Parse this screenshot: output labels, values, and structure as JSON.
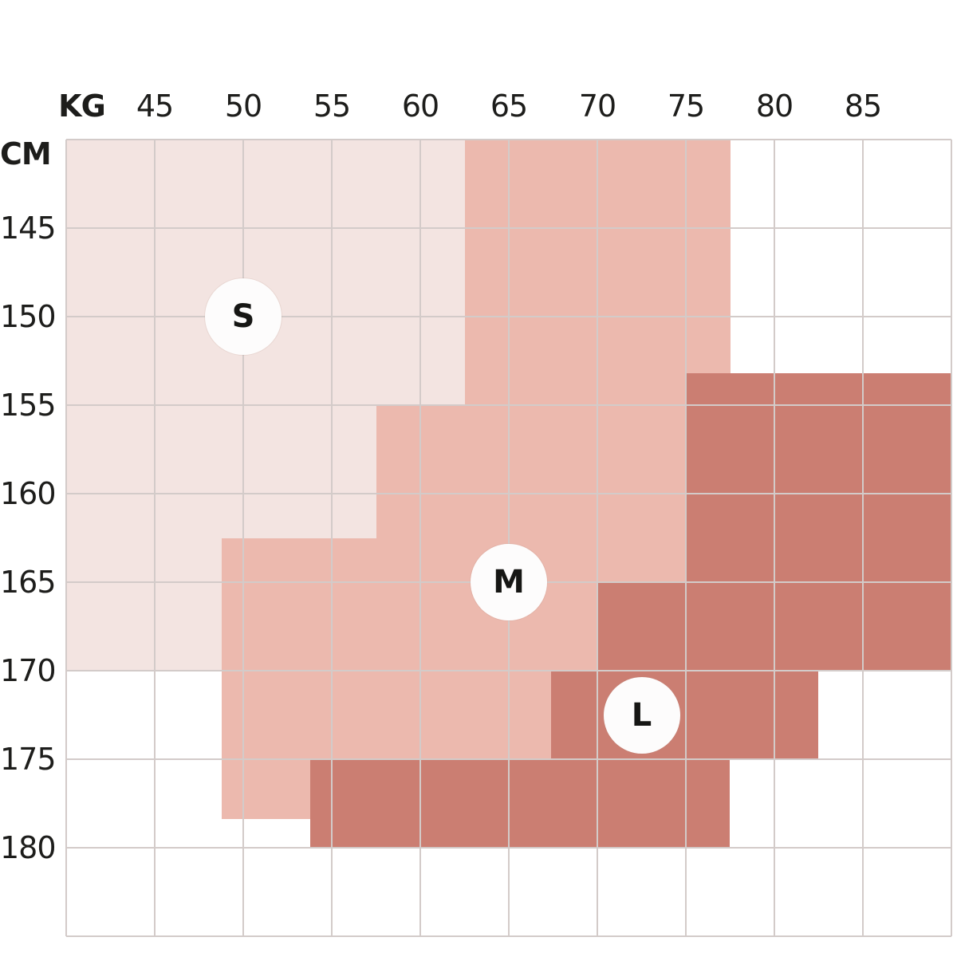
{
  "page": {
    "background": "#ffffff",
    "text_color": "#1d1d1b",
    "gridline_color": "#d3cbc9"
  },
  "axes": {
    "x": {
      "label": "KG",
      "min": 40,
      "max": 90,
      "ticks": [
        45,
        50,
        55,
        60,
        65,
        70,
        75,
        80,
        85
      ]
    },
    "y": {
      "label": "CM",
      "min": 140,
      "max": 185,
      "ticks": [
        145,
        150,
        155,
        160,
        165,
        170,
        175,
        180
      ]
    }
  },
  "chart_data": {
    "type": "heatmap",
    "title": "",
    "xlabel": "KG",
    "ylabel": "CM",
    "x_range": [
      40,
      90
    ],
    "y_range": [
      140,
      185
    ],
    "grid": true,
    "legend_position": "in-plot badges",
    "sizes": [
      {
        "label": "S",
        "color": "#f3e4e1",
        "badge": {
          "kg": 50,
          "cm": 150
        },
        "regions": [
          {
            "kg": [
              40,
              62.5
            ],
            "cm": [
              140,
              155
            ]
          },
          {
            "kg": [
              40,
              57.5
            ],
            "cm": [
              155,
              162.5
            ]
          },
          {
            "kg": [
              40,
              48.8
            ],
            "cm": [
              162.5,
              170
            ]
          }
        ]
      },
      {
        "label": "M",
        "color": "#ecb9ae",
        "badge": {
          "kg": 65,
          "cm": 165
        },
        "regions": [
          {
            "kg": [
              62.5,
              77.5
            ],
            "cm": [
              140,
              153.2
            ]
          },
          {
            "kg": [
              62.5,
              75
            ],
            "cm": [
              153.2,
              155
            ]
          },
          {
            "kg": [
              57.5,
              75
            ],
            "cm": [
              155,
              162.5
            ]
          },
          {
            "kg": [
              48.8,
              75
            ],
            "cm": [
              162.5,
              165
            ]
          },
          {
            "kg": [
              48.8,
              70
            ],
            "cm": [
              165,
              170
            ]
          },
          {
            "kg": [
              48.8,
              67.4
            ],
            "cm": [
              170,
              175
            ]
          },
          {
            "kg": [
              48.8,
              53.8
            ],
            "cm": [
              175,
              178.4
            ]
          }
        ]
      },
      {
        "label": "L",
        "color": "#cb7e72",
        "badge": {
          "kg": 72.5,
          "cm": 172.5
        },
        "regions": [
          {
            "kg": [
              75,
              90
            ],
            "cm": [
              153.2,
              165
            ]
          },
          {
            "kg": [
              70,
              90
            ],
            "cm": [
              165,
              170
            ]
          },
          {
            "kg": [
              67.4,
              82.5
            ],
            "cm": [
              170,
              175
            ]
          },
          {
            "kg": [
              53.8,
              77.5
            ],
            "cm": [
              175,
              180
            ]
          }
        ]
      }
    ]
  }
}
